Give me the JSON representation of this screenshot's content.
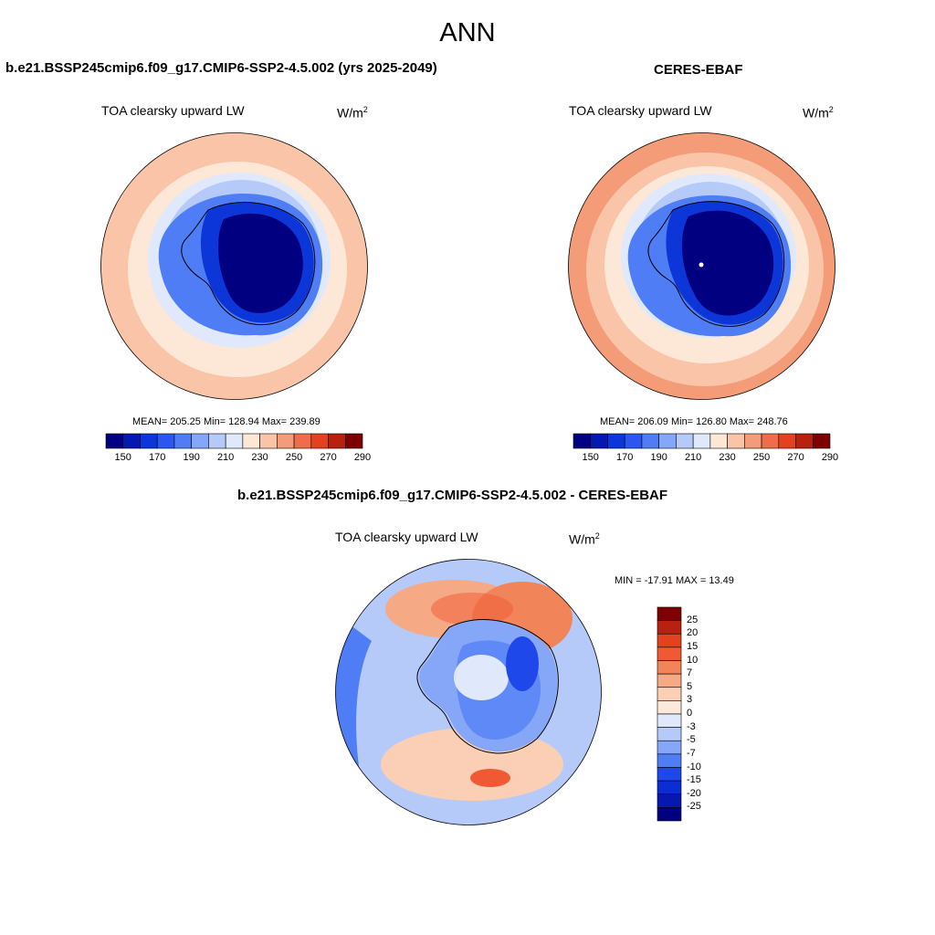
{
  "header": {
    "title": "ANN"
  },
  "panels": [
    {
      "title": "b.e21.BSSP245cmip6.f09_g17.CMIP6-SSP2-4.5.002 (yrs 2025-2049)",
      "variable": "TOA clearsky upward LW",
      "units_base": "W/m",
      "units_exp": "2",
      "stats": "MEAN= 205.25  Min= 128.94  Max= 239.89"
    },
    {
      "title": "CERES-EBAF",
      "variable": "TOA clearsky upward LW",
      "units_base": "W/m",
      "units_exp": "2",
      "stats": "MEAN= 206.09  Min= 126.80  Max= 248.76"
    },
    {
      "title": "b.e21.BSSP245cmip6.f09_g17.CMIP6-SSP2-4.5.002 - CERES-EBAF",
      "variable": "TOA clearsky upward LW",
      "units_base": "W/m",
      "units_exp": "2",
      "stats": "MIN = -17.91 MAX =  13.49"
    }
  ],
  "colorbar_abs": {
    "colors": [
      "#000080",
      "#0618b0",
      "#0d36d9",
      "#2a58ee",
      "#4e7df5",
      "#86a6f7",
      "#b5caf9",
      "#dfe9fb",
      "#fde7d7",
      "#f9c4a8",
      "#f39c77",
      "#ef6e49",
      "#e3421f",
      "#b8210d",
      "#7f0000"
    ],
    "tick_labels": [
      "150",
      "170",
      "190",
      "210",
      "230",
      "250",
      "270",
      "290"
    ]
  },
  "colorbar_diff": {
    "colors": [
      "#7f0000",
      "#b8210d",
      "#e3421f",
      "#ef5a34",
      "#f2845a",
      "#f6a985",
      "#fbcfb5",
      "#fde9dc",
      "#dfe9fb",
      "#b5caf9",
      "#86a6f7",
      "#4e7df5",
      "#1e48ea",
      "#0a2ed3",
      "#0618b0",
      "#000080"
    ],
    "tick_labels": [
      "25",
      "20",
      "15",
      "10",
      "7",
      "5",
      "3",
      "0",
      "-3",
      "-5",
      "-7",
      "-10",
      "-15",
      "-20",
      "-25"
    ]
  }
}
